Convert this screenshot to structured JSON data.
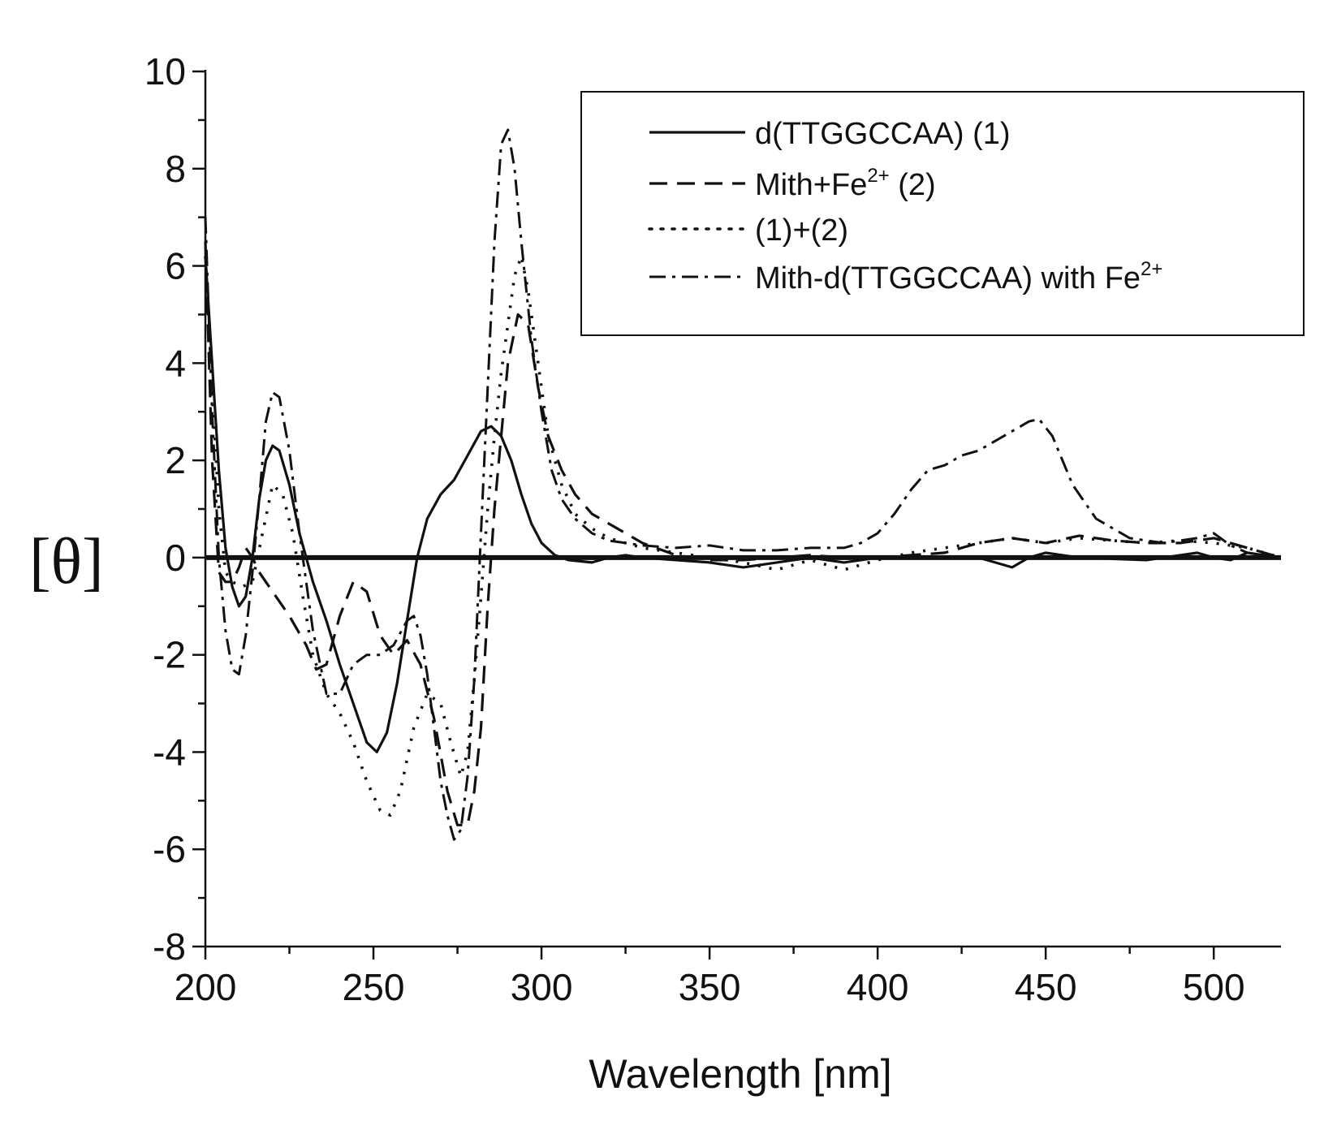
{
  "chart_data": {
    "type": "line",
    "title": "",
    "xlabel": "Wavelength [nm]",
    "ylabel": "[θ]",
    "xlim": [
      200,
      520
    ],
    "ylim": [
      -8,
      10
    ],
    "xticks": [
      200,
      250,
      300,
      350,
      400,
      450,
      500
    ],
    "yticks": [
      -8,
      -6,
      -4,
      -2,
      0,
      2,
      4,
      6,
      8,
      10
    ],
    "grid": false,
    "legend_position": "top-right",
    "series": [
      {
        "name": "d(TTGGCCAA) (1)",
        "style": "solid",
        "legend_main": "d(TTGGCCAA) (1)",
        "legend_sup": "",
        "legend_suffix": "",
        "x": [
          200,
          202,
          204,
          206,
          208,
          210,
          212,
          214,
          216,
          218,
          220,
          222,
          225,
          228,
          232,
          236,
          240,
          244,
          248,
          251,
          254,
          257,
          260,
          263,
          266,
          270,
          274,
          278,
          282,
          285,
          288,
          291,
          294,
          297,
          300,
          304,
          308,
          315,
          320,
          325,
          330,
          340,
          350,
          360,
          370,
          380,
          390,
          400,
          420,
          430,
          440,
          445,
          450,
          460,
          480,
          490,
          495,
          500,
          505,
          510,
          515,
          520
        ],
        "y": [
          6.2,
          4.0,
          1.8,
          0.2,
          -0.6,
          -1.0,
          -0.8,
          0.0,
          1.2,
          2.0,
          2.3,
          2.2,
          1.5,
          0.5,
          -0.5,
          -1.3,
          -2.2,
          -3.0,
          -3.8,
          -4.0,
          -3.6,
          -2.6,
          -1.3,
          0.0,
          0.8,
          1.3,
          1.6,
          2.1,
          2.6,
          2.7,
          2.5,
          2.0,
          1.3,
          0.7,
          0.3,
          0.05,
          -0.05,
          -0.1,
          0.0,
          0.05,
          0.0,
          -0.05,
          -0.1,
          -0.2,
          -0.1,
          0.0,
          -0.1,
          0.0,
          0.0,
          0.0,
          -0.2,
          0.0,
          0.1,
          0.0,
          -0.05,
          0.05,
          0.1,
          0.0,
          -0.05,
          0.1,
          0.05,
          0.0
        ]
      },
      {
        "name": "Mith+Fe2+ (2)",
        "style": "dashed",
        "legend_main": "Mith+Fe",
        "legend_sup": "2+",
        "legend_suffix": " (2)",
        "x": [
          200,
          202,
          204,
          206,
          208,
          210,
          212,
          214,
          216,
          220,
          225,
          230,
          233,
          236,
          240,
          244,
          248,
          252,
          256,
          260,
          264,
          268,
          272,
          275,
          278,
          280,
          282,
          284,
          286,
          288,
          290,
          293,
          296,
          299,
          302,
          306,
          310,
          315,
          320,
          325,
          330,
          340,
          350,
          360,
          370,
          380,
          390,
          400,
          410,
          420,
          430,
          440,
          450,
          460,
          470,
          480,
          490,
          500,
          510,
          520
        ],
        "y": [
          6.5,
          2.0,
          -0.3,
          -0.5,
          -0.5,
          -0.2,
          0.2,
          0.0,
          -0.3,
          -0.7,
          -1.2,
          -1.8,
          -2.3,
          -2.2,
          -1.2,
          -0.5,
          -0.7,
          -1.6,
          -2.0,
          -1.7,
          -2.2,
          -3.3,
          -4.8,
          -5.5,
          -5.5,
          -4.8,
          -3.5,
          -1.0,
          1.0,
          2.5,
          4.0,
          5.0,
          4.8,
          3.5,
          2.5,
          1.8,
          1.3,
          0.9,
          0.7,
          0.5,
          0.3,
          0.05,
          -0.05,
          -0.05,
          0.0,
          0.05,
          0.0,
          0.0,
          0.05,
          0.1,
          0.3,
          0.4,
          0.3,
          0.45,
          0.35,
          0.3,
          0.3,
          0.4,
          0.2,
          0.0
        ]
      },
      {
        "name": "(1)+(2)",
        "style": "dotted",
        "legend_main": "(1)+(2)",
        "legend_sup": "",
        "legend_suffix": "",
        "x": [
          200,
          202,
          204,
          206,
          208,
          211,
          214,
          217,
          220,
          223,
          226,
          229,
          232,
          236,
          240,
          244,
          248,
          252,
          255,
          258,
          262,
          266,
          270,
          273,
          276,
          278,
          280,
          282,
          284,
          286,
          288,
          290,
          292,
          294,
          296,
          299,
          302,
          306,
          310,
          315,
          320,
          330,
          340,
          350,
          360,
          370,
          380,
          390,
          400,
          410,
          420,
          430,
          440,
          450,
          460,
          470,
          480,
          490,
          500,
          510,
          520
        ],
        "y": [
          6.2,
          3.5,
          1.0,
          -0.3,
          -0.5,
          -0.6,
          -0.5,
          0.5,
          1.5,
          1.3,
          0.5,
          -0.8,
          -2.0,
          -2.8,
          -3.2,
          -3.8,
          -4.6,
          -5.2,
          -5.3,
          -4.8,
          -3.5,
          -2.8,
          -3.0,
          -3.8,
          -4.5,
          -4.0,
          -2.5,
          -0.8,
          1.0,
          2.5,
          3.8,
          4.8,
          5.8,
          6.2,
          5.5,
          4.0,
          2.5,
          1.5,
          0.9,
          0.6,
          0.4,
          0.2,
          0.1,
          0.0,
          -0.1,
          -0.25,
          -0.05,
          -0.25,
          -0.05,
          0.1,
          0.2,
          0.3,
          0.4,
          0.3,
          0.4,
          0.35,
          0.3,
          0.35,
          0.3,
          0.2,
          0.0
        ]
      },
      {
        "name": "Mith-d(TTGGCCAA) with Fe2+",
        "style": "dashdot",
        "legend_main": "Mith-d(TTGGCCAA) with Fe",
        "legend_sup": "2+",
        "legend_suffix": "",
        "x": [
          200,
          202,
          204,
          206,
          208,
          210,
          212,
          214,
          216,
          218,
          220,
          222,
          225,
          228,
          232,
          236,
          240,
          244,
          248,
          252,
          256,
          260,
          262,
          264,
          266,
          268,
          270,
          272,
          274,
          276,
          278,
          280,
          282,
          284,
          286,
          288,
          290,
          292,
          294,
          297,
          300,
          303,
          306,
          310,
          315,
          320,
          330,
          340,
          350,
          360,
          370,
          380,
          390,
          395,
          400,
          405,
          410,
          415,
          420,
          425,
          430,
          435,
          440,
          445,
          448,
          452,
          458,
          465,
          475,
          485,
          495,
          500,
          505,
          510,
          515,
          520
        ],
        "y": [
          7.0,
          3.0,
          0.0,
          -1.5,
          -2.3,
          -2.4,
          -1.6,
          -0.3,
          1.2,
          2.8,
          3.4,
          3.3,
          2.2,
          0.5,
          -1.5,
          -2.8,
          -2.8,
          -2.2,
          -2.0,
          -2.0,
          -1.8,
          -1.3,
          -1.2,
          -1.6,
          -2.4,
          -3.5,
          -4.6,
          -5.3,
          -5.8,
          -5.6,
          -4.5,
          -2.5,
          0.5,
          3.5,
          6.5,
          8.5,
          8.8,
          8.0,
          6.5,
          4.5,
          3.0,
          1.8,
          1.2,
          0.8,
          0.5,
          0.35,
          0.25,
          0.2,
          0.25,
          0.15,
          0.15,
          0.2,
          0.2,
          0.3,
          0.5,
          0.9,
          1.4,
          1.8,
          1.9,
          2.1,
          2.2,
          2.4,
          2.6,
          2.8,
          2.85,
          2.5,
          1.5,
          0.8,
          0.4,
          0.3,
          0.4,
          0.5,
          0.25,
          0.1,
          0.05,
          0.0
        ]
      }
    ]
  }
}
